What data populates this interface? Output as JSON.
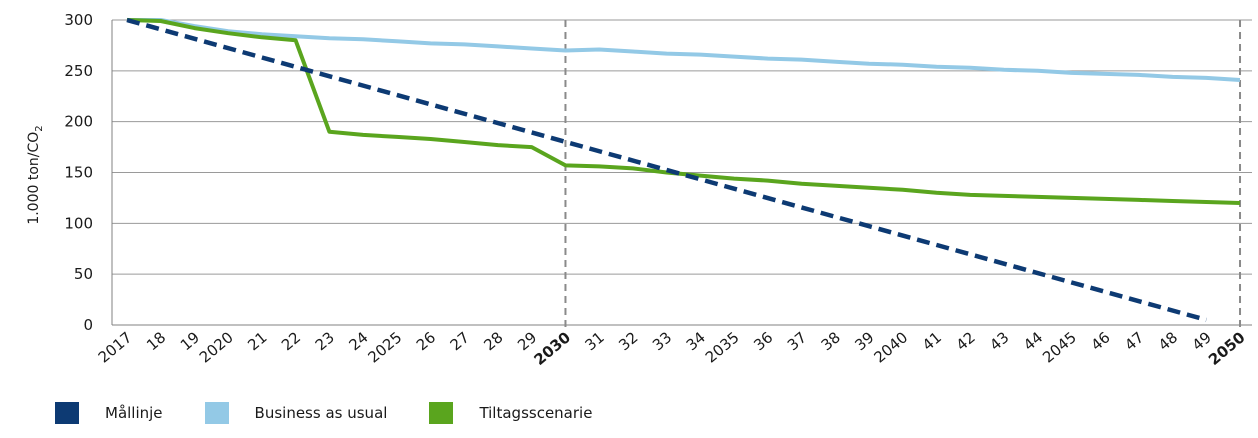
{
  "chart_data": {
    "type": "line",
    "ylabel": "1.000 ton/CO",
    "ylabel_sub": "2",
    "ylim": [
      0,
      300
    ],
    "yticks": [
      0,
      50,
      100,
      150,
      200,
      250,
      300
    ],
    "grid": true,
    "legend_position": "bottom-left",
    "x": [
      2017,
      2018,
      2019,
      2020,
      2021,
      2022,
      2023,
      2024,
      2025,
      2026,
      2027,
      2028,
      2029,
      2030,
      2031,
      2032,
      2033,
      2034,
      2035,
      2036,
      2037,
      2038,
      2039,
      2040,
      2041,
      2042,
      2043,
      2044,
      2045,
      2046,
      2047,
      2048,
      2049,
      2050
    ],
    "xtick_labels": [
      "2017",
      "18",
      "19",
      "2020",
      "21",
      "22",
      "23",
      "24",
      "2025",
      "26",
      "27",
      "28",
      "29",
      "2030",
      "31",
      "32",
      "33",
      "34",
      "2035",
      "36",
      "37",
      "38",
      "39",
      "2040",
      "41",
      "42",
      "43",
      "44",
      "2045",
      "46",
      "47",
      "48",
      "49",
      "2050"
    ],
    "bold_ticks": [
      "2030",
      "2050"
    ],
    "reference_lines_x": [
      2030,
      2050
    ],
    "series": [
      {
        "name": "Mållinje",
        "color": "#0d3a73",
        "style": "dashed",
        "x": [
          2017,
          2049
        ],
        "values": [
          300,
          5
        ]
      },
      {
        "name": "Business as usual",
        "color": "#93c9e6",
        "style": "solid",
        "x": [
          2017,
          2018,
          2019,
          2020,
          2021,
          2022,
          2023,
          2024,
          2025,
          2026,
          2027,
          2028,
          2029,
          2030,
          2031,
          2032,
          2033,
          2034,
          2035,
          2036,
          2037,
          2038,
          2039,
          2040,
          2041,
          2042,
          2043,
          2044,
          2045,
          2046,
          2047,
          2048,
          2049,
          2050
        ],
        "values": [
          300,
          300,
          294,
          289,
          286,
          284,
          282,
          281,
          279,
          277,
          276,
          274,
          272,
          270,
          271,
          269,
          267,
          266,
          264,
          262,
          261,
          259,
          257,
          256,
          254,
          253,
          251,
          250,
          248,
          247,
          246,
          244,
          243,
          241
        ]
      },
      {
        "name": "Tiltagsscenarie",
        "color": "#5aa51e",
        "style": "solid",
        "x": [
          2017,
          2018,
          2019,
          2020,
          2021,
          2022,
          2023,
          2024,
          2025,
          2026,
          2027,
          2028,
          2029,
          2030,
          2031,
          2032,
          2033,
          2034,
          2035,
          2036,
          2037,
          2038,
          2039,
          2040,
          2041,
          2042,
          2043,
          2044,
          2045,
          2046,
          2047,
          2048,
          2049,
          2050
        ],
        "values": [
          300,
          299,
          292,
          287,
          283,
          280,
          190,
          187,
          185,
          183,
          180,
          177,
          175,
          157,
          156,
          154,
          150,
          147,
          144,
          142,
          139,
          137,
          135,
          133,
          130,
          128,
          127,
          126,
          125,
          124,
          123,
          122,
          121,
          120
        ]
      }
    ]
  }
}
